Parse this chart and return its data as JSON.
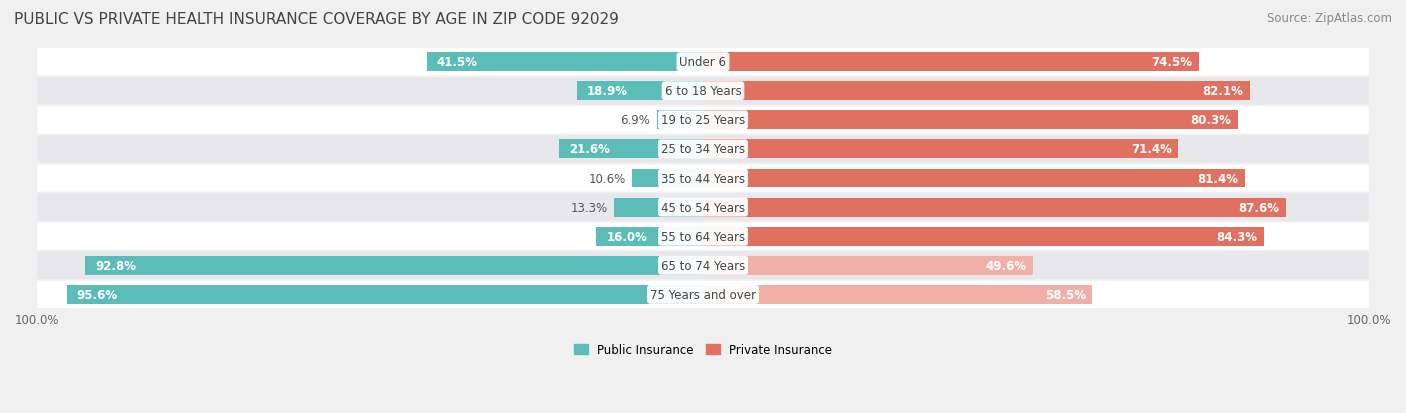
{
  "title": "PUBLIC VS PRIVATE HEALTH INSURANCE COVERAGE BY AGE IN ZIP CODE 92029",
  "source": "Source: ZipAtlas.com",
  "categories": [
    "Under 6",
    "6 to 18 Years",
    "19 to 25 Years",
    "25 to 34 Years",
    "35 to 44 Years",
    "45 to 54 Years",
    "55 to 64 Years",
    "65 to 74 Years",
    "75 Years and over"
  ],
  "public_values": [
    41.5,
    18.9,
    6.9,
    21.6,
    10.6,
    13.3,
    16.0,
    92.8,
    95.6
  ],
  "private_values": [
    74.5,
    82.1,
    80.3,
    71.4,
    81.4,
    87.6,
    84.3,
    49.6,
    58.5
  ],
  "public_color": "#5bbcb8",
  "private_color_strong": "#e07060",
  "private_color_light": "#f0b0a8",
  "background_color": "#f0f0f0",
  "row_bg_even": "#ffffff",
  "row_bg_odd": "#e8e8ec",
  "title_fontsize": 11,
  "label_fontsize": 8.5,
  "source_fontsize": 8.5,
  "axis_label_fontsize": 8.5,
  "value_threshold": 50
}
